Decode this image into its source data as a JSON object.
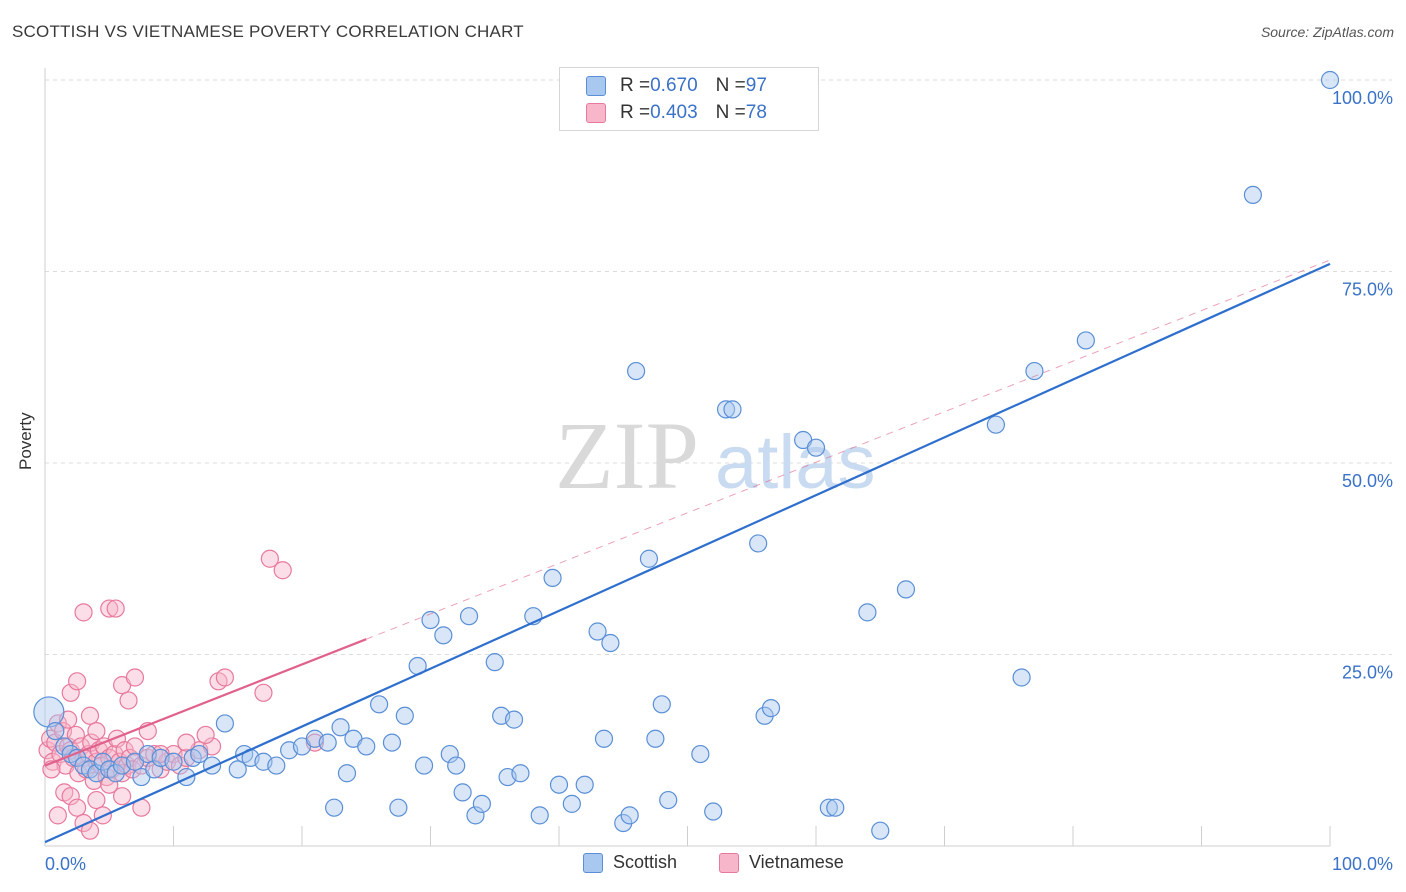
{
  "title": "SCOTTISH VS VIETNAMESE POVERTY CORRELATION CHART",
  "source": "Source: ZipAtlas.com",
  "watermark": {
    "part1": "ZIP",
    "part2": "atlas"
  },
  "legend_top": [
    {
      "r_label": "R = ",
      "r_value": "0.670",
      "n_label": "N = ",
      "n_value": "97"
    },
    {
      "r_label": "R = ",
      "r_value": "0.403",
      "n_label": "N = ",
      "n_value": "78"
    }
  ],
  "colors": {
    "scottish_fill": "#a9c8f0",
    "scottish_stroke": "#5a8fd6",
    "scottish_line": "#2e6fce",
    "vietnamese_fill": "#f7b6ca",
    "vietnamese_stroke": "#e8799c",
    "vietnamese_line": "#e0628c",
    "tick_label": "#3a72c8",
    "grid": "#dcdcdc"
  },
  "chart_data": {
    "type": "scatter",
    "title": "SCOTTISH VS VIETNAMESE POVERTY CORRELATION CHART",
    "xlabel": "",
    "ylabel": "Poverty",
    "xlim": [
      0,
      100
    ],
    "ylim": [
      0,
      100
    ],
    "x_tick_labels": [
      "0.0%",
      "100.0%"
    ],
    "y_ticks": [
      25,
      50,
      75,
      100
    ],
    "y_tick_labels": [
      "25.0%",
      "50.0%",
      "75.0%",
      "100.0%"
    ],
    "grid": true,
    "legend_position": "bottom",
    "series": [
      {
        "name": "Scottish",
        "r": 0.67,
        "n": 97,
        "trend": [
          [
            0,
            0.5
          ],
          [
            100,
            76
          ]
        ],
        "points": [
          [
            0.3,
            17.5
          ],
          [
            0.8,
            15.0
          ],
          [
            1.5,
            13.0
          ],
          [
            2.0,
            12.0
          ],
          [
            2.5,
            11.5
          ],
          [
            3.0,
            10.5
          ],
          [
            3.5,
            10.0
          ],
          [
            4.0,
            9.5
          ],
          [
            4.5,
            11.0
          ],
          [
            5.0,
            10.0
          ],
          [
            5.5,
            9.5
          ],
          [
            6.0,
            10.5
          ],
          [
            7.0,
            11.0
          ],
          [
            7.5,
            9.0
          ],
          [
            8.0,
            12.0
          ],
          [
            8.5,
            10.0
          ],
          [
            9.0,
            11.5
          ],
          [
            10.0,
            11.0
          ],
          [
            11.0,
            9.0
          ],
          [
            11.5,
            11.5
          ],
          [
            12.0,
            12.0
          ],
          [
            13.0,
            10.5
          ],
          [
            14.0,
            16.0
          ],
          [
            15.0,
            10.0
          ],
          [
            15.5,
            12.0
          ],
          [
            16.0,
            11.5
          ],
          [
            17.0,
            11.0
          ],
          [
            18.0,
            10.5
          ],
          [
            19.0,
            12.5
          ],
          [
            20.0,
            13.0
          ],
          [
            21.0,
            14.0
          ],
          [
            22.0,
            13.5
          ],
          [
            22.5,
            5.0
          ],
          [
            23.0,
            15.5
          ],
          [
            23.5,
            9.5
          ],
          [
            24.0,
            14.0
          ],
          [
            25.0,
            13.0
          ],
          [
            26.0,
            18.5
          ],
          [
            27.0,
            13.5
          ],
          [
            27.5,
            5.0
          ],
          [
            28.0,
            17.0
          ],
          [
            29.0,
            23.5
          ],
          [
            29.5,
            10.5
          ],
          [
            30.0,
            29.5
          ],
          [
            31.0,
            27.5
          ],
          [
            31.5,
            12.0
          ],
          [
            32.0,
            10.5
          ],
          [
            32.5,
            7.0
          ],
          [
            33.0,
            30.0
          ],
          [
            33.5,
            4.0
          ],
          [
            34.0,
            5.5
          ],
          [
            35.0,
            24.0
          ],
          [
            35.5,
            17.0
          ],
          [
            36.0,
            9.0
          ],
          [
            36.5,
            16.5
          ],
          [
            37.0,
            9.5
          ],
          [
            38.0,
            30.0
          ],
          [
            38.5,
            4.0
          ],
          [
            39.5,
            35.0
          ],
          [
            40.0,
            8.0
          ],
          [
            41.0,
            5.5
          ],
          [
            42.0,
            8.0
          ],
          [
            43.0,
            28.0
          ],
          [
            43.5,
            14.0
          ],
          [
            44.0,
            26.5
          ],
          [
            45.0,
            3.0
          ],
          [
            45.5,
            4.0
          ],
          [
            46.0,
            62.0
          ],
          [
            47.0,
            37.5
          ],
          [
            47.5,
            14.0
          ],
          [
            48.0,
            18.5
          ],
          [
            48.5,
            6.0
          ],
          [
            51.0,
            12.0
          ],
          [
            52.0,
            4.5
          ],
          [
            53.0,
            57.0
          ],
          [
            53.5,
            57.0
          ],
          [
            55.5,
            39.5
          ],
          [
            56.0,
            17.0
          ],
          [
            56.5,
            18.0
          ],
          [
            59.0,
            53.0
          ],
          [
            60.0,
            52.0
          ],
          [
            61.0,
            5.0
          ],
          [
            61.5,
            5.0
          ],
          [
            64.0,
            30.5
          ],
          [
            65.0,
            2.0
          ],
          [
            67.0,
            33.5
          ],
          [
            74.0,
            55.0
          ],
          [
            76.0,
            22.0
          ],
          [
            77.0,
            62.0
          ],
          [
            81.0,
            66.0
          ],
          [
            94.0,
            85.0
          ],
          [
            100.0,
            100.0
          ],
          [
            53.0,
            100.0
          ],
          [
            58.0,
            100.0
          ]
        ]
      },
      {
        "name": "Vietnamese",
        "r": 0.403,
        "n": 78,
        "trend": [
          [
            0,
            10.5
          ],
          [
            25,
            27.0
          ]
        ],
        "points": [
          [
            0.2,
            12.5
          ],
          [
            0.4,
            14.0
          ],
          [
            0.6,
            11.0
          ],
          [
            0.8,
            13.5
          ],
          [
            1.0,
            16.0
          ],
          [
            1.2,
            12.0
          ],
          [
            1.4,
            15.0
          ],
          [
            1.6,
            10.5
          ],
          [
            1.8,
            13.0
          ],
          [
            2.0,
            12.5
          ],
          [
            2.2,
            11.5
          ],
          [
            2.4,
            14.5
          ],
          [
            2.6,
            9.5
          ],
          [
            2.8,
            13.0
          ],
          [
            3.0,
            11.5
          ],
          [
            3.2,
            10.0
          ],
          [
            3.4,
            12.0
          ],
          [
            3.6,
            13.5
          ],
          [
            3.8,
            8.5
          ],
          [
            4.0,
            11.0
          ],
          [
            4.2,
            12.5
          ],
          [
            4.4,
            10.5
          ],
          [
            4.6,
            13.0
          ],
          [
            4.8,
            9.0
          ],
          [
            5.0,
            11.5
          ],
          [
            5.2,
            10.0
          ],
          [
            5.4,
            12.0
          ],
          [
            5.6,
            14.0
          ],
          [
            5.8,
            11.0
          ],
          [
            6.0,
            9.5
          ],
          [
            6.2,
            12.5
          ],
          [
            6.4,
            10.5
          ],
          [
            6.6,
            11.5
          ],
          [
            6.8,
            10.0
          ],
          [
            7.0,
            13.0
          ],
          [
            7.5,
            10.5
          ],
          [
            8.0,
            11.5
          ],
          [
            8.5,
            12.0
          ],
          [
            9.0,
            10.0
          ],
          [
            9.5,
            11.0
          ],
          [
            10.0,
            12.0
          ],
          [
            10.5,
            10.5
          ],
          [
            11.0,
            11.5
          ],
          [
            12.0,
            12.5
          ],
          [
            13.0,
            13.0
          ],
          [
            1.5,
            7.0
          ],
          [
            2.0,
            6.5
          ],
          [
            2.5,
            5.0
          ],
          [
            3.0,
            3.0
          ],
          [
            3.5,
            2.0
          ],
          [
            4.0,
            6.0
          ],
          [
            4.5,
            4.0
          ],
          [
            5.0,
            8.0
          ],
          [
            6.0,
            6.5
          ],
          [
            7.5,
            5.0
          ],
          [
            2.0,
            20.0
          ],
          [
            2.5,
            21.5
          ],
          [
            3.5,
            17.0
          ],
          [
            5.0,
            31.0
          ],
          [
            5.5,
            31.0
          ],
          [
            6.0,
            21.0
          ],
          [
            6.5,
            19.0
          ],
          [
            7.0,
            22.0
          ],
          [
            3.0,
            30.5
          ],
          [
            1.0,
            4.0
          ],
          [
            4.0,
            15.0
          ],
          [
            8.0,
            15.0
          ],
          [
            11.0,
            13.5
          ],
          [
            12.5,
            14.5
          ],
          [
            13.5,
            21.5
          ],
          [
            14.0,
            22.0
          ],
          [
            17.0,
            20.0
          ],
          [
            17.5,
            37.5
          ],
          [
            18.5,
            36.0
          ],
          [
            21.0,
            13.5
          ],
          [
            9.0,
            12.0
          ],
          [
            1.8,
            16.5
          ],
          [
            0.5,
            10.0
          ]
        ]
      }
    ]
  }
}
